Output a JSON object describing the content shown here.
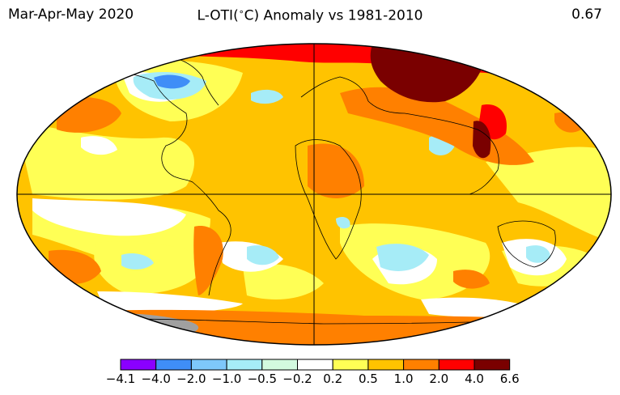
{
  "header": {
    "period": "Mar-Apr-May 2020",
    "title_prefix": "L-OTI(",
    "title_degree": "∘",
    "title_suffix": "C) Anomaly vs 1981-2010",
    "global_mean": "0.67"
  },
  "legend": {
    "bins": [
      {
        "color": "#8a00ff"
      },
      {
        "color": "#3f8ef7"
      },
      {
        "color": "#7ec8fa"
      },
      {
        "color": "#a6ecf7"
      },
      {
        "color": "#d3fadf"
      },
      {
        "color": "#ffffff"
      },
      {
        "color": "#ffff55"
      },
      {
        "color": "#ffc300"
      },
      {
        "color": "#ff8000"
      },
      {
        "color": "#ff0000"
      },
      {
        "color": "#7a0000"
      }
    ],
    "ticks": [
      "−4.1",
      "−4.0",
      "−2.0",
      "−1.0",
      "−0.5",
      "−0.2",
      "0.2",
      "0.5",
      "1.0",
      "2.0",
      "4.0",
      "6.6"
    ]
  },
  "map": {
    "projection": "Robinson",
    "missing_data_color": "#a0a0a0",
    "coastline_color": "#000000"
  }
}
